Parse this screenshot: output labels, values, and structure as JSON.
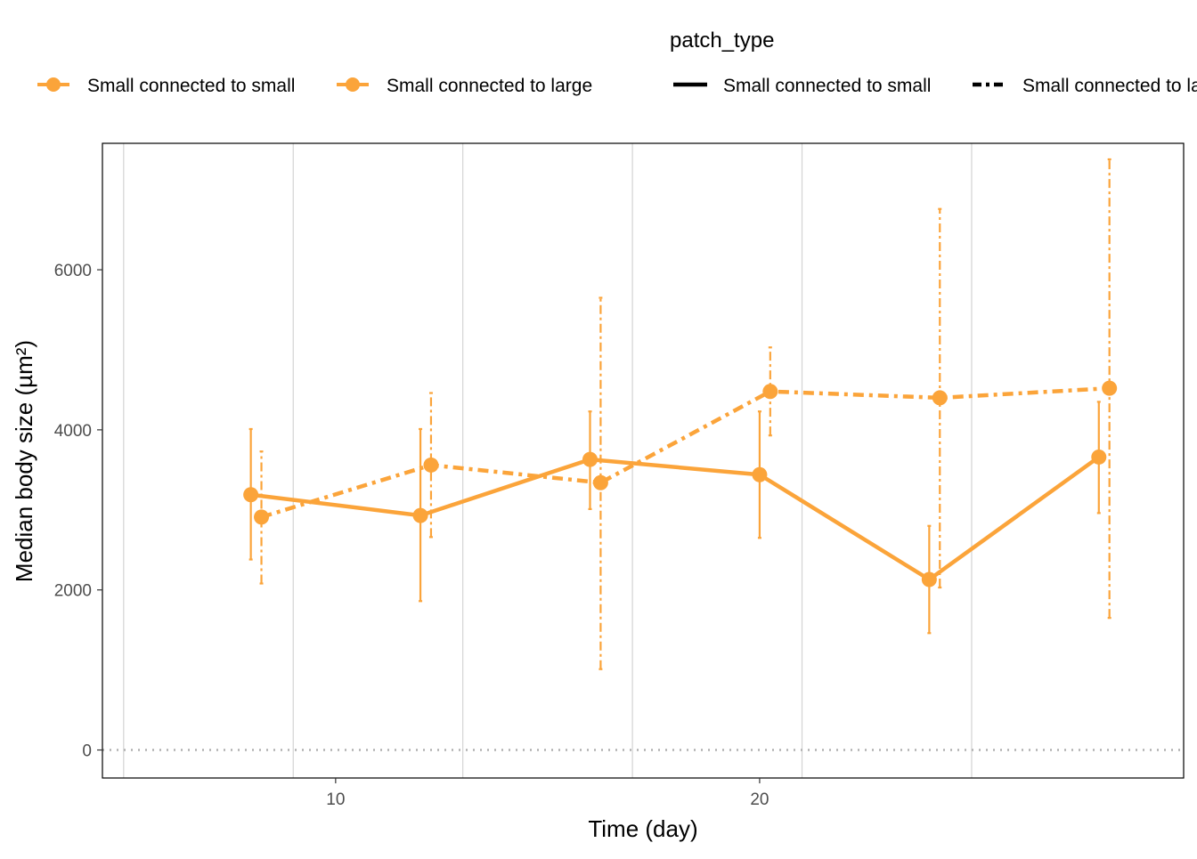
{
  "colors": {
    "series": "#FBA43A",
    "grid": "#D3D3D3",
    "zero_line": "#AFAFAF",
    "axis": "#000000",
    "tick_text": "#4D4D4D",
    "text": "#000000"
  },
  "legend": {
    "title": "patch_type",
    "color_entries": [
      "Small connected to small",
      "Small connected to large"
    ],
    "linetype_entries": [
      "Small connected to small",
      "Small connected to large"
    ]
  },
  "chart_data": {
    "type": "line",
    "xlabel": "Time (day)",
    "ylabel": "Median body size (µm²)",
    "xlim": [
      4.5,
      30.0
    ],
    "ylim": [
      -350,
      7580
    ],
    "x_ticks": [
      10,
      20
    ],
    "y_ticks": [
      0,
      2000,
      4000,
      6000
    ],
    "x_gridlines": [
      5,
      9,
      13,
      17,
      21,
      25
    ],
    "zero_reference_line": 0,
    "legend_position": "top",
    "series": [
      {
        "name": "Small connected to small",
        "linestyle": "solid",
        "points": [
          {
            "x": 8.0,
            "y": 3190,
            "ymin": 2380,
            "ymax": 4010
          },
          {
            "x": 12.0,
            "y": 2930,
            "ymin": 1860,
            "ymax": 4010
          },
          {
            "x": 16.0,
            "y": 3630,
            "ymin": 3010,
            "ymax": 4230
          },
          {
            "x": 20.0,
            "y": 3440,
            "ymin": 2650,
            "ymax": 4230
          },
          {
            "x": 24.0,
            "y": 2130,
            "ymin": 1460,
            "ymax": 2800
          },
          {
            "x": 28.0,
            "y": 3660,
            "ymin": 2960,
            "ymax": 4350
          }
        ]
      },
      {
        "name": "Small connected to large",
        "linestyle": "dashdot",
        "points": [
          {
            "x": 8.25,
            "y": 2910,
            "ymin": 2080,
            "ymax": 3730
          },
          {
            "x": 12.25,
            "y": 3560,
            "ymin": 2660,
            "ymax": 4460
          },
          {
            "x": 16.25,
            "y": 3340,
            "ymin": 1010,
            "ymax": 5650
          },
          {
            "x": 20.25,
            "y": 4480,
            "ymin": 3930,
            "ymax": 5030
          },
          {
            "x": 24.25,
            "y": 4400,
            "ymin": 2030,
            "ymax": 6760
          },
          {
            "x": 28.25,
            "y": 4520,
            "ymin": 1650,
            "ymax": 7380
          }
        ]
      }
    ]
  }
}
